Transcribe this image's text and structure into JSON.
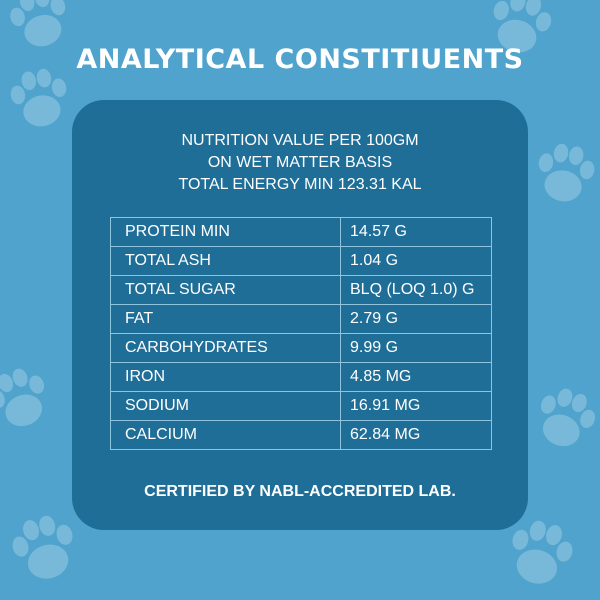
{
  "title": "ANALYTICAL CONSTITIUENTS",
  "intro": {
    "line1": "NUTRITION VALUE PER 100GM",
    "line2": "ON WET MATTER BASIS",
    "line3": "TOTAL ENERGY MIN 123.31 KAL"
  },
  "rows": [
    {
      "name": "PROTEIN MIN",
      "value": "14.57 G"
    },
    {
      "name": "TOTAL ASH",
      "value": "1.04 G"
    },
    {
      "name": "TOTAL SUGAR",
      "value": "BLQ (LOQ 1.0) G"
    },
    {
      "name": "FAT",
      "value": "2.79 G"
    },
    {
      "name": "CARBOHYDRATES",
      "value": "9.99 G"
    },
    {
      "name": "IRON",
      "value": "4.85 MG"
    },
    {
      "name": "SODIUM",
      "value": "16.91 MG"
    },
    {
      "name": "CALCIUM",
      "value": "62.84 MG"
    }
  ],
  "footer": "CERTIFIED BY NABL-ACCREDITED LAB.",
  "colors": {
    "background": "#4fa3cc",
    "card": "#1f6e98",
    "paw": "#86c0de",
    "table_border": "#8fc3de",
    "text": "#ffffff"
  },
  "icons": [
    "paw-print-icon"
  ]
}
